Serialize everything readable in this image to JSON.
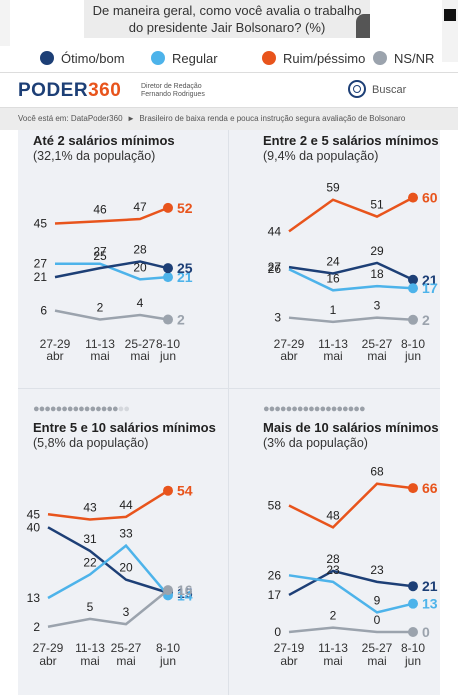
{
  "question": "De maneira geral, como você avalia o trabalho do presidente Jair Bolsonaro? (%)",
  "legend": [
    {
      "label": "Ótimo/bom",
      "color": "#1d3f76"
    },
    {
      "label": "Regular",
      "color": "#4db3ea"
    },
    {
      "label": "Ruim/péssimo",
      "color": "#e8541c"
    },
    {
      "label": "NS/NR",
      "color": "#9ba3ad"
    }
  ],
  "brand": {
    "name": "PODER",
    "number": "360",
    "credit_line1": "Diretor de Redação",
    "credit_line2": "Fernando Rodrigues"
  },
  "search": {
    "label": "Buscar",
    "icon": "search-icon"
  },
  "breadcrumb": {
    "prefix": "Você está em: DataPoder360",
    "separator": "►",
    "current": "Brasileiro de baixa renda e pouca instrução segura avaliação de Bolsonaro"
  },
  "x_labels": [
    [
      "27-29",
      "abr"
    ],
    [
      "11-13",
      "mai"
    ],
    [
      "25-27",
      "mai"
    ],
    [
      "8-10",
      "jun"
    ]
  ],
  "x_labels_alt": [
    [
      "27-19",
      "abr"
    ],
    [
      "11-13",
      "mai"
    ],
    [
      "25-27",
      "mai"
    ],
    [
      "8-10",
      "jun"
    ]
  ],
  "chart_data": [
    {
      "type": "line",
      "title": "Até 2 salários mínimos",
      "subtitle": "(32,1% da população)",
      "categories": [
        "27-29 abr",
        "11-13 mai",
        "25-27 mai",
        "8-10 jun"
      ],
      "series": [
        {
          "name": "Ruim/péssimo",
          "color": "#e8541c",
          "values": [
            45,
            46,
            47,
            52
          ]
        },
        {
          "name": "Regular",
          "color": "#4db3ea",
          "values": [
            27,
            27,
            20,
            21
          ]
        },
        {
          "name": "Ótimo/bom",
          "color": "#1d3f76",
          "values": [
            21,
            25,
            28,
            25
          ]
        },
        {
          "name": "NS/NR",
          "color": "#9ba3ad",
          "values": [
            6,
            2,
            4,
            2
          ]
        }
      ]
    },
    {
      "type": "line",
      "title": "Entre 2 e 5 salários mínimos",
      "subtitle": "(9,4% da população)",
      "categories": [
        "27-29 abr",
        "11-13 mai",
        "25-27 mai",
        "8-10 jun"
      ],
      "series": [
        {
          "name": "Ruim/péssimo",
          "color": "#e8541c",
          "values": [
            44,
            59,
            51,
            60
          ]
        },
        {
          "name": "Ótimo/bom",
          "color": "#1d3f76",
          "values": [
            27,
            24,
            29,
            21
          ]
        },
        {
          "name": "Regular",
          "color": "#4db3ea",
          "values": [
            26,
            16,
            18,
            17
          ]
        },
        {
          "name": "NS/NR",
          "color": "#9ba3ad",
          "values": [
            3,
            1,
            3,
            2
          ]
        }
      ]
    },
    {
      "type": "line",
      "title": "Entre 5 e 10 salários mínimos",
      "subtitle": "(5,8% da população)",
      "categories": [
        "27-29 abr",
        "11-13 mai",
        "25-27 mai",
        "8-10 jun"
      ],
      "series": [
        {
          "name": "Ruim/péssimo",
          "color": "#e8541c",
          "values": [
            45,
            43,
            44,
            54
          ]
        },
        {
          "name": "Ótimo/bom",
          "color": "#1d3f76",
          "values": [
            40,
            31,
            20,
            15
          ]
        },
        {
          "name": "Regular",
          "color": "#4db3ea",
          "values": [
            13,
            22,
            33,
            14
          ]
        },
        {
          "name": "NS/NR",
          "color": "#9ba3ad",
          "values": [
            2,
            5,
            3,
            16
          ]
        }
      ]
    },
    {
      "type": "line",
      "title": "Mais de 10 salários mínimos",
      "subtitle": "(3% da população)",
      "categories": [
        "27-19 abr",
        "11-13 mai",
        "25-27 mai",
        "8-10 jun"
      ],
      "series": [
        {
          "name": "Ruim/péssimo",
          "color": "#e8541c",
          "values": [
            58,
            48,
            68,
            66
          ]
        },
        {
          "name": "Ótimo/bom",
          "color": "#1d3f76",
          "values": [
            17,
            28,
            23,
            21
          ]
        },
        {
          "name": "Regular",
          "color": "#4db3ea",
          "values": [
            26,
            23,
            9,
            13
          ]
        },
        {
          "name": "NS/NR",
          "color": "#9ba3ad",
          "values": [
            0,
            2,
            0,
            0
          ]
        }
      ]
    }
  ]
}
